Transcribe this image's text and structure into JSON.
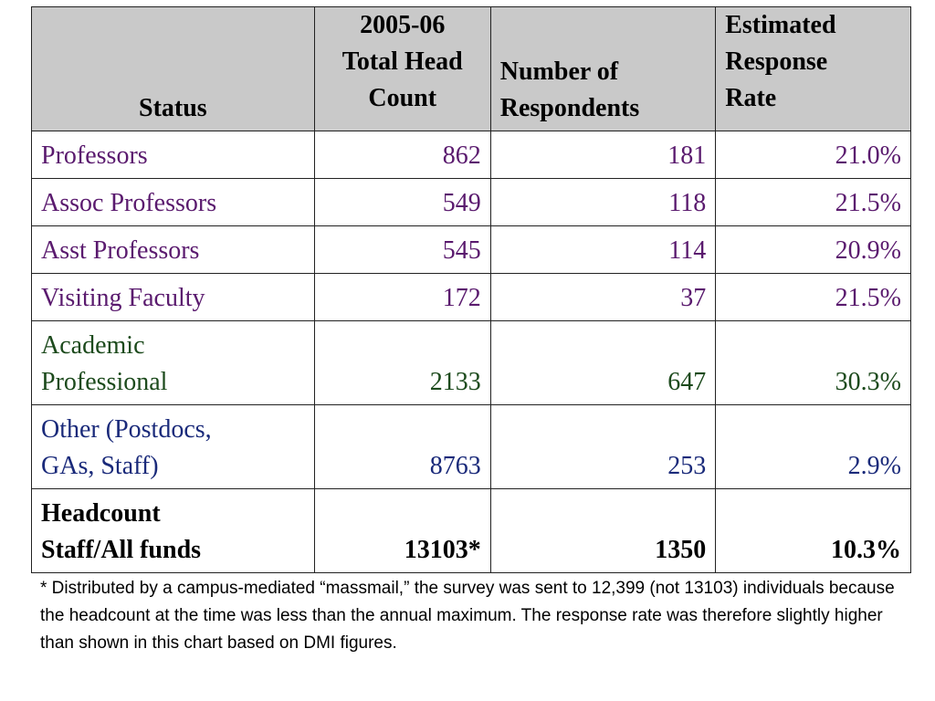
{
  "table": {
    "headers": {
      "status": "Status",
      "headcount": [
        "2005-06",
        "Total Head",
        "Count"
      ],
      "respondents": [
        "Number of",
        "Respondents"
      ],
      "rate": [
        "Estimated",
        "Response",
        "Rate"
      ]
    },
    "rows": [
      {
        "status": [
          "Professors"
        ],
        "headcount": "862",
        "respondents": "181",
        "rate": "21.0%",
        "color": "#5a1a6e"
      },
      {
        "status": [
          "Assoc Professors"
        ],
        "headcount": "549",
        "respondents": "118",
        "rate": "21.5%",
        "color": "#5a1a6e"
      },
      {
        "status": [
          "Asst Professors"
        ],
        "headcount": "545",
        "respondents": "114",
        "rate": "20.9%",
        "color": "#5a1a6e"
      },
      {
        "status": [
          "Visiting Faculty"
        ],
        "headcount": "172",
        "respondents": "37",
        "rate": "21.5%",
        "color": "#5a1a6e"
      },
      {
        "status": [
          "Academic",
          "Professional"
        ],
        "headcount": "2133",
        "respondents": "647",
        "rate": "30.3%",
        "color": "#1c4a1c"
      },
      {
        "status": [
          "Other (Postdocs,",
          "GAs, Staff)"
        ],
        "headcount": "8763",
        "respondents": "253",
        "rate": "2.9%",
        "color": "#1a2a7a"
      },
      {
        "status": [
          "Headcount",
          "Staff/All funds"
        ],
        "headcount": "13103*",
        "respondents": "1350",
        "rate": "10.3%",
        "color": "#000000",
        "total": true
      }
    ]
  },
  "footnote": "* Distributed by a campus-mediated “massmail,” the survey was sent to 12,399 (not 13103) individuals because the headcount at the time was less than the annual maximum.  The response rate was therefore slightly higher than shown in this chart based on DMI figures."
}
